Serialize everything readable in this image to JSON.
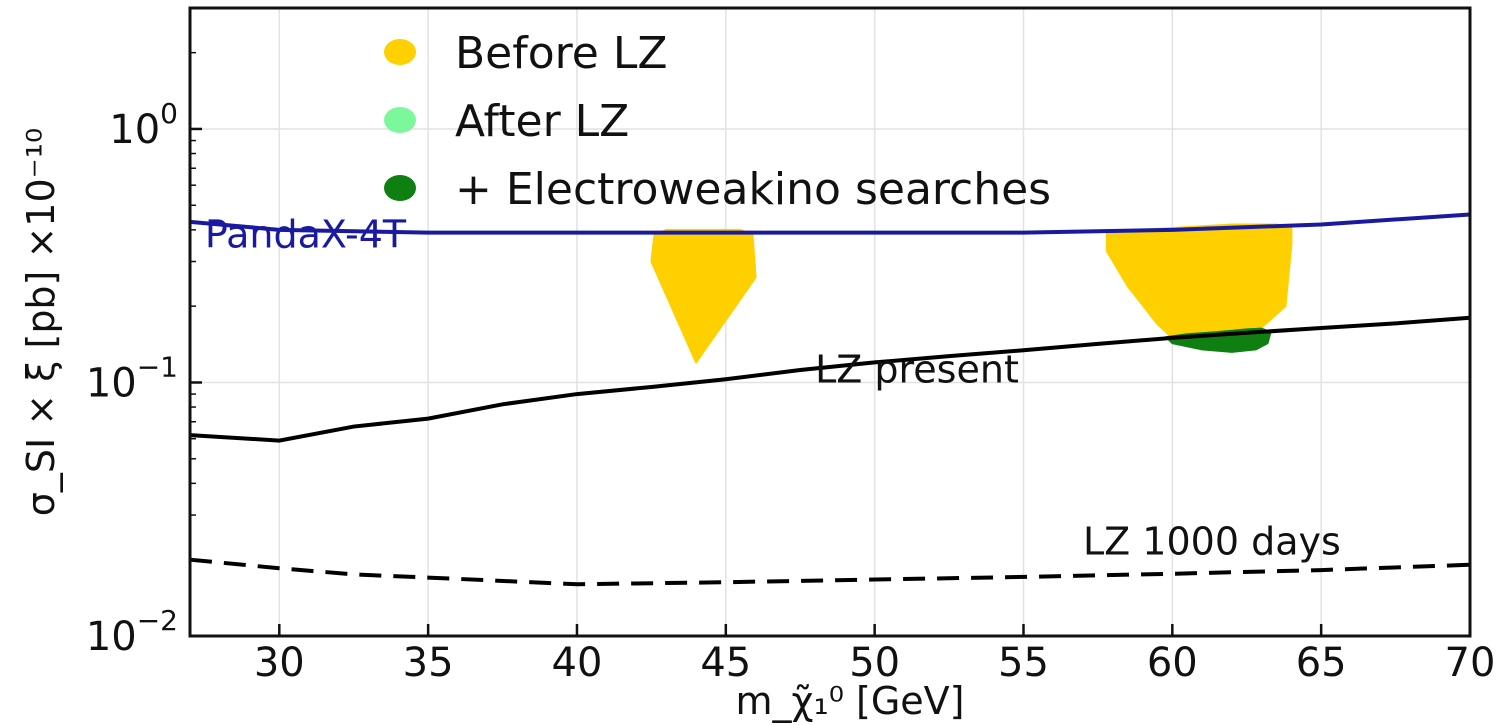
{
  "chart_data": {
    "type": "line",
    "xlabel": "m_χ̃₁⁰ [GeV]",
    "ylabel": "σ_SI × ξ [pb] ×10⁻¹⁰",
    "xlim": [
      27,
      70
    ],
    "ylim": [
      0.01,
      3.0
    ],
    "yscale": "log",
    "x_ticks": [
      30,
      35,
      40,
      45,
      50,
      55,
      60,
      65,
      70
    ],
    "y_ticks": [
      {
        "value": 1,
        "base": "10",
        "exp": "0"
      },
      {
        "value": 0.1,
        "base": "10",
        "exp": "−1"
      },
      {
        "value": 0.01,
        "base": "10",
        "exp": "−2"
      }
    ],
    "grid": true,
    "legend_position": "top",
    "legend": [
      {
        "label": "Before LZ",
        "color": "#FFD000"
      },
      {
        "label": "After LZ",
        "color": "#7CF79C"
      },
      {
        "label": "+ Electroweakino searches",
        "color": "#0E7F10"
      }
    ],
    "series": [
      {
        "name": "PandaX-4T",
        "style": "solid",
        "color": "#1A1AA0",
        "x": [
          27,
          30,
          35,
          40,
          45,
          50,
          55,
          60,
          65,
          70
        ],
        "y": [
          0.43,
          0.4,
          0.39,
          0.39,
          0.39,
          0.39,
          0.39,
          0.4,
          0.42,
          0.46
        ]
      },
      {
        "name": "LZ present",
        "style": "solid",
        "color": "#000000",
        "x": [
          27,
          30,
          32.5,
          35,
          37.5,
          40,
          42.5,
          45,
          47.5,
          50,
          52.5,
          55,
          57.5,
          60,
          62.5,
          65,
          67.5,
          70
        ],
        "y": [
          0.062,
          0.059,
          0.067,
          0.072,
          0.082,
          0.09,
          0.096,
          0.103,
          0.112,
          0.12,
          0.127,
          0.134,
          0.142,
          0.15,
          0.157,
          0.164,
          0.171,
          0.18
        ]
      },
      {
        "name": "LZ 1000 days",
        "style": "dashed",
        "color": "#000000",
        "x": [
          27,
          30,
          32.5,
          35,
          40,
          45,
          50,
          55,
          60,
          65,
          70
        ],
        "y": [
          0.02,
          0.0185,
          0.0175,
          0.017,
          0.016,
          0.0163,
          0.0167,
          0.0171,
          0.0176,
          0.0182,
          0.0191
        ]
      }
    ],
    "regions": [
      {
        "label": "Before LZ",
        "color": "#FFD000",
        "x": [
          42.5,
          42.6,
          43.0,
          43.5,
          44.0,
          44.5,
          45.0,
          45.5,
          45.9,
          46.0,
          44.0
        ],
        "y": [
          0.3,
          0.38,
          0.4,
          0.4,
          0.4,
          0.4,
          0.4,
          0.4,
          0.38,
          0.26,
          0.12
        ]
      },
      {
        "label": "Before LZ",
        "color": "#FFD000",
        "x": [
          57.8,
          59.0,
          60.5,
          62.0,
          63.5,
          64.0,
          64.0,
          63.8,
          63.0,
          62.0,
          61.0,
          60.0,
          59.5,
          58.5,
          57.8
        ],
        "y": [
          0.39,
          0.4,
          0.41,
          0.42,
          0.42,
          0.41,
          0.35,
          0.2,
          0.165,
          0.163,
          0.158,
          0.15,
          0.17,
          0.24,
          0.33
        ]
      },
      {
        "label": "+ Electroweakino searches",
        "color": "#0E7F10",
        "x": [
          59.8,
          60.5,
          61.5,
          62.5,
          63.0,
          63.3,
          63.2,
          62.8,
          62.0,
          61.0,
          60.0
        ],
        "y": [
          0.151,
          0.155,
          0.158,
          0.162,
          0.163,
          0.158,
          0.143,
          0.135,
          0.132,
          0.135,
          0.143
        ]
      }
    ],
    "annotations": [
      {
        "text": "PandaX-4T",
        "x": 27.5,
        "y": 0.34,
        "color": "#1A1AA0"
      },
      {
        "text": "LZ present",
        "x": 48,
        "y": 0.1,
        "color": "#111111"
      },
      {
        "text": "LZ 1000 days",
        "x": 57,
        "y": 0.021,
        "color": "#111111"
      }
    ]
  }
}
